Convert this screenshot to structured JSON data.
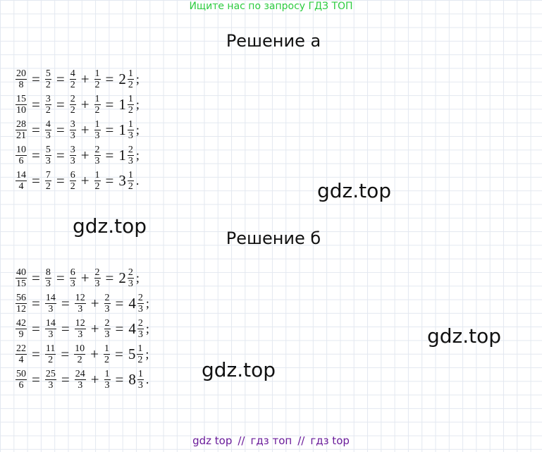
{
  "banner": "Ищите нас по запросу ГДЗ ТОП",
  "sections": [
    {
      "title": "Решение а",
      "lines": [
        [
          {
            "n": 20,
            "d": 8
          },
          "=",
          {
            "n": 5,
            "d": 2
          },
          "=",
          {
            "n": 4,
            "d": 2
          },
          "+",
          {
            "n": 1,
            "d": 2
          },
          "=",
          {
            "w": 2,
            "n": 1,
            "d": 2
          },
          ";"
        ],
        [
          {
            "n": 15,
            "d": 10
          },
          "=",
          {
            "n": 3,
            "d": 2
          },
          "=",
          {
            "n": 2,
            "d": 2
          },
          "+",
          {
            "n": 1,
            "d": 2
          },
          "=",
          {
            "w": 1,
            "n": 1,
            "d": 2
          },
          ";"
        ],
        [
          {
            "n": 28,
            "d": 21
          },
          "=",
          {
            "n": 4,
            "d": 3
          },
          "=",
          {
            "n": 3,
            "d": 3
          },
          "+",
          {
            "n": 1,
            "d": 3
          },
          "=",
          {
            "w": 1,
            "n": 1,
            "d": 3
          },
          ";"
        ],
        [
          {
            "n": 10,
            "d": 6
          },
          "=",
          {
            "n": 5,
            "d": 3
          },
          "=",
          {
            "n": 3,
            "d": 3
          },
          "+",
          {
            "n": 2,
            "d": 3
          },
          "=",
          {
            "w": 1,
            "n": 2,
            "d": 3
          },
          ";"
        ],
        [
          {
            "n": 14,
            "d": 4
          },
          "=",
          {
            "n": 7,
            "d": 2
          },
          "=",
          {
            "n": 6,
            "d": 2
          },
          "+",
          {
            "n": 1,
            "d": 2
          },
          "=",
          {
            "w": 3,
            "n": 1,
            "d": 2
          },
          "."
        ]
      ]
    },
    {
      "title": "Решение б",
      "lines": [
        [
          {
            "n": 40,
            "d": 15
          },
          "=",
          {
            "n": 8,
            "d": 3
          },
          "=",
          {
            "n": 6,
            "d": 3
          },
          "+",
          {
            "n": 2,
            "d": 3
          },
          "=",
          {
            "w": 2,
            "n": 2,
            "d": 3
          },
          ";"
        ],
        [
          {
            "n": 56,
            "d": 12
          },
          "=",
          {
            "n": 14,
            "d": 3
          },
          "=",
          {
            "n": 12,
            "d": 3
          },
          "+",
          {
            "n": 2,
            "d": 3
          },
          "=",
          {
            "w": 4,
            "n": 2,
            "d": 3
          },
          ";"
        ],
        [
          {
            "n": 42,
            "d": 9
          },
          "=",
          {
            "n": 14,
            "d": 3
          },
          "=",
          {
            "n": 12,
            "d": 3
          },
          "+",
          {
            "n": 2,
            "d": 3
          },
          "=",
          {
            "w": 4,
            "n": 2,
            "d": 3
          },
          ";"
        ],
        [
          {
            "n": 22,
            "d": 4
          },
          "=",
          {
            "n": 11,
            "d": 2
          },
          "=",
          {
            "n": 10,
            "d": 2
          },
          "+",
          {
            "n": 1,
            "d": 2
          },
          "=",
          {
            "w": 5,
            "n": 1,
            "d": 2
          },
          ";"
        ],
        [
          {
            "n": 50,
            "d": 6
          },
          "=",
          {
            "n": 25,
            "d": 3
          },
          "=",
          {
            "n": 24,
            "d": 3
          },
          "+",
          {
            "n": 1,
            "d": 3
          },
          "=",
          {
            "w": 8,
            "n": 1,
            "d": 3
          },
          "."
        ]
      ]
    }
  ],
  "watermarks": [
    "gdz.top",
    "gdz.top",
    "gdz.top",
    "gdz.top"
  ],
  "footer": [
    "gdz top",
    "//",
    "гдз топ",
    "//",
    "гдз top"
  ]
}
